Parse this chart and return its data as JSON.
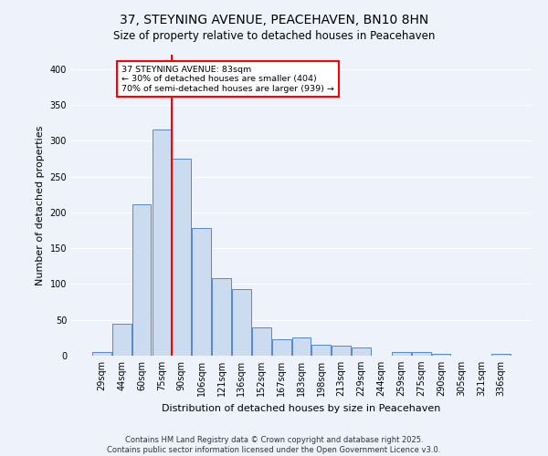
{
  "title": "37, STEYNING AVENUE, PEACEHAVEN, BN10 8HN",
  "subtitle": "Size of property relative to detached houses in Peacehaven",
  "xlabel": "Distribution of detached houses by size in Peacehaven",
  "ylabel": "Number of detached properties",
  "categories": [
    "29sqm",
    "44sqm",
    "60sqm",
    "75sqm",
    "90sqm",
    "106sqm",
    "121sqm",
    "136sqm",
    "152sqm",
    "167sqm",
    "183sqm",
    "198sqm",
    "213sqm",
    "229sqm",
    "244sqm",
    "259sqm",
    "275sqm",
    "290sqm",
    "305sqm",
    "321sqm",
    "336sqm"
  ],
  "values": [
    5,
    44,
    211,
    315,
    275,
    178,
    108,
    93,
    40,
    23,
    25,
    15,
    14,
    11,
    0,
    5,
    5,
    3,
    0,
    0,
    3
  ],
  "bar_color": "#ccdcf0",
  "bar_edge_color": "#5588cc",
  "red_line_x": 3.5,
  "annotation_text": "37 STEYNING AVENUE: 83sqm\n← 30% of detached houses are smaller (404)\n70% of semi-detached houses are larger (939) →",
  "annotation_box_facecolor": "white",
  "annotation_box_edgecolor": "red",
  "footer_line1": "Contains HM Land Registry data © Crown copyright and database right 2025.",
  "footer_line2": "Contains public sector information licensed under the Open Government Licence v3.0.",
  "background_color": "#eef2fa",
  "ylim": [
    0,
    420
  ],
  "yticks": [
    0,
    50,
    100,
    150,
    200,
    250,
    300,
    350,
    400
  ],
  "grid_color": "#ffffff",
  "title_fontsize": 10,
  "subtitle_fontsize": 8.5,
  "ylabel_fontsize": 8,
  "xlabel_fontsize": 8,
  "tick_fontsize": 7,
  "footer_fontsize": 6
}
